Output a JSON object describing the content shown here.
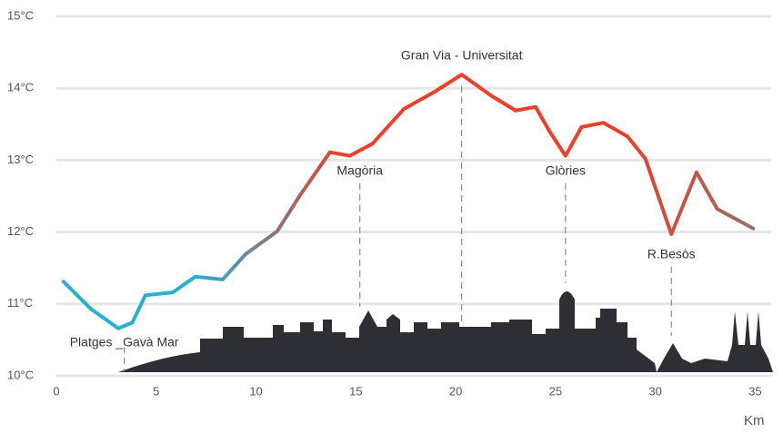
{
  "chart_data": {
    "type": "line",
    "x": [
      0.36,
      1.73,
      3.1,
      3.8,
      4.46,
      5.83,
      6.96,
      8.33,
      9.47,
      11.06,
      12.2,
      13.7,
      14.7,
      15.84,
      17.4,
      19.0,
      20.3,
      21.76,
      23.0,
      24.0,
      24.7,
      25.5,
      26.3,
      27.4,
      28.6,
      29.5,
      30.8,
      32.06,
      33.1,
      34.9
    ],
    "series": [
      {
        "colors": [
          "#2aaed3",
          "#2aaed3",
          "#e8402a",
          "#e8402a",
          "#e8402a",
          "#8a7670"
        ],
        "values": [
          11.31,
          10.93,
          10.66,
          10.74,
          11.12,
          11.16,
          11.38,
          11.34,
          11.69,
          12.01,
          12.51,
          13.11,
          13.06,
          13.23,
          13.71,
          13.96,
          14.19,
          13.9,
          13.69,
          13.74,
          13.4,
          13.06,
          13.46,
          13.52,
          13.33,
          13.02,
          11.97,
          12.83,
          12.32,
          12.05
        ]
      }
    ],
    "xlim": [
      0,
      35.8
    ],
    "ylim": [
      10,
      15
    ],
    "xticks": [
      0,
      5,
      10,
      15,
      20,
      25,
      30,
      35
    ],
    "yticks": [
      {
        "value": 10,
        "label": "10°C"
      },
      {
        "value": 11,
        "label": "11°C"
      },
      {
        "value": 12,
        "label": "12°C"
      },
      {
        "value": 13,
        "label": "13°C"
      },
      {
        "value": 14,
        "label": "14°C"
      },
      {
        "value": 15,
        "label": "15°C"
      }
    ],
    "x_label": "Km",
    "grid": true,
    "annotations": [
      {
        "text": "Platges _Gavà Mar",
        "x": 3.4
      },
      {
        "text": "Magòria",
        "x": 15.2
      },
      {
        "text": "Gran Via - Universitat",
        "x": 20.3
      },
      {
        "text": "Glòries",
        "x": 25.5
      },
      {
        "text": "R.Besòs",
        "x": 30.8
      }
    ]
  }
}
